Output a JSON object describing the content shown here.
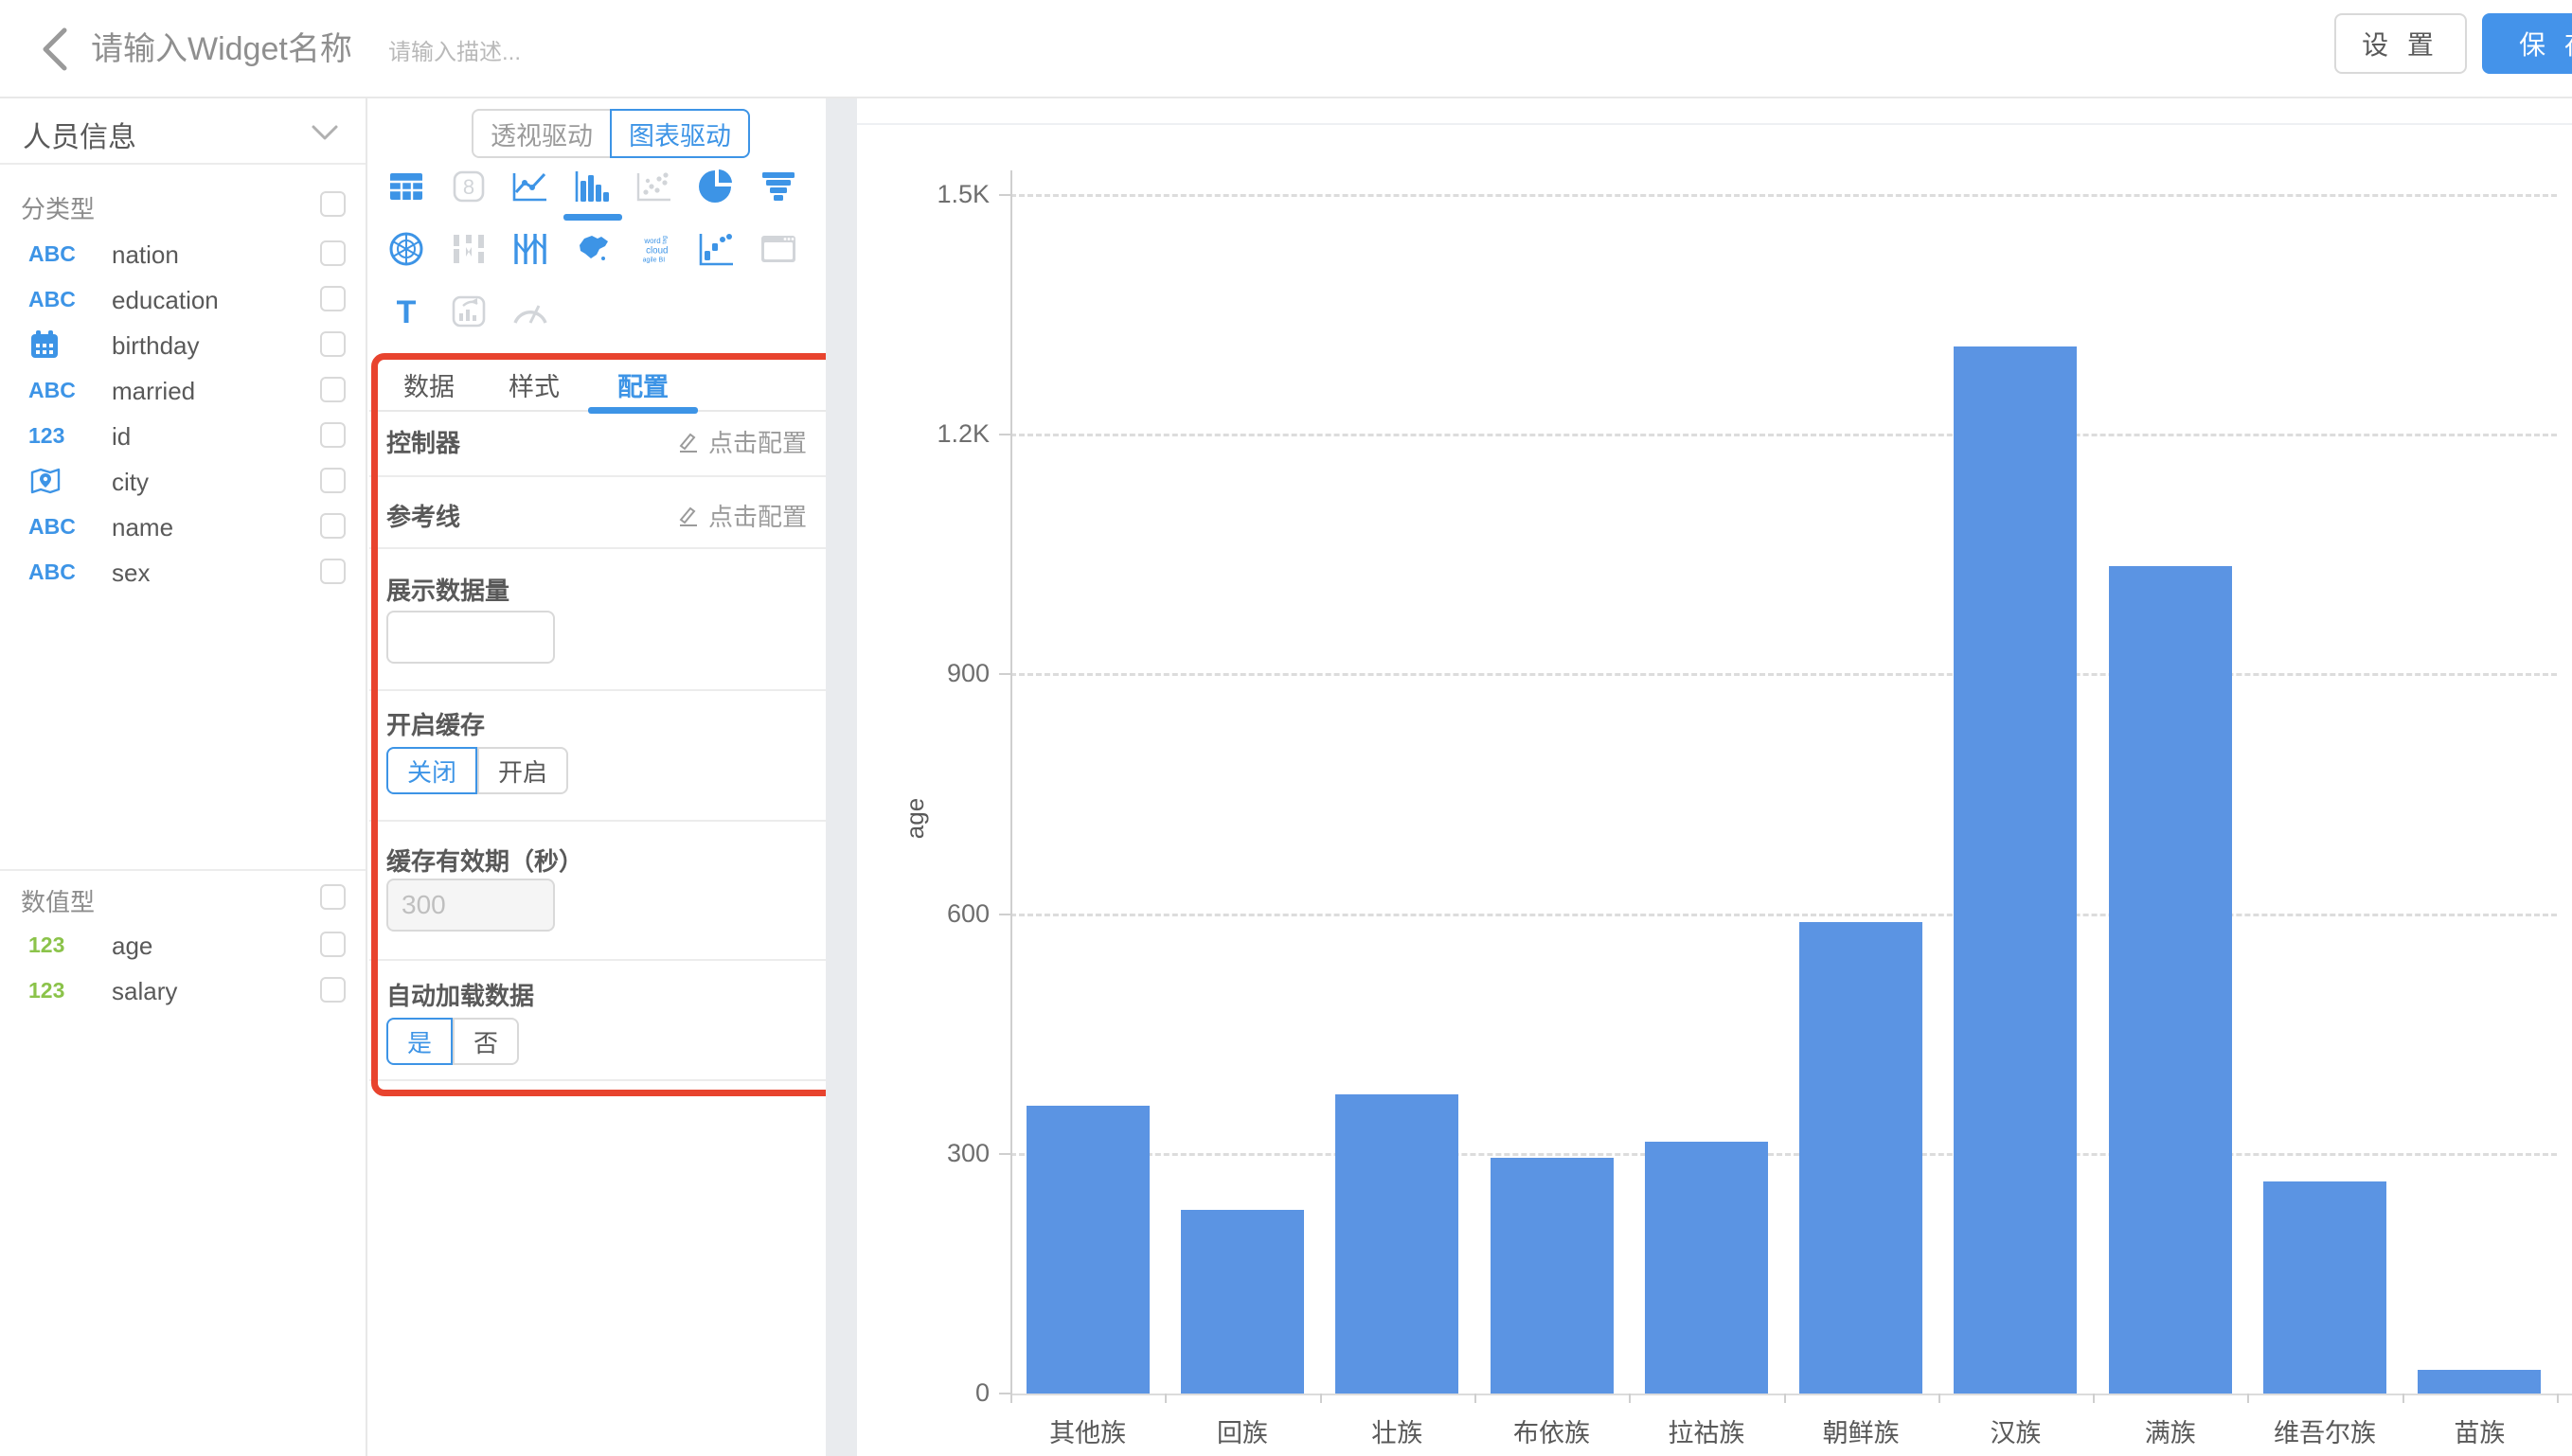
{
  "header": {
    "title_placeholder": "请输入Widget名称",
    "desc_placeholder": "请输入描述...",
    "settings_label": "设 置",
    "save_label": "保 存"
  },
  "colors": {
    "accent": "#3d94e6",
    "disabled_icon": "#d2d5d9",
    "green": "#8bc34a",
    "bar": "#5b94e3",
    "annotation": "#e8432e"
  },
  "sidebar": {
    "dataset_name": "人员信息",
    "groups": [
      {
        "label": "分类型",
        "fields": [
          {
            "icon": "abc",
            "name": "nation"
          },
          {
            "icon": "abc",
            "name": "education"
          },
          {
            "icon": "calendar",
            "name": "birthday"
          },
          {
            "icon": "abc",
            "name": "married"
          },
          {
            "icon": "num-blue",
            "name": "id"
          },
          {
            "icon": "map-pin",
            "name": "city"
          },
          {
            "icon": "abc",
            "name": "name"
          },
          {
            "icon": "abc",
            "name": "sex"
          }
        ]
      },
      {
        "label": "数值型",
        "fields": [
          {
            "icon": "num-green",
            "name": "age"
          },
          {
            "icon": "num-green",
            "name": "salary"
          }
        ]
      }
    ]
  },
  "builder": {
    "mode_tabs": [
      {
        "label": "透视驱动",
        "active": false
      },
      {
        "label": "图表驱动",
        "active": true
      }
    ],
    "chart_types": [
      {
        "icon": "table",
        "enabled": true,
        "selected": false
      },
      {
        "icon": "scorecard",
        "enabled": false,
        "selected": false
      },
      {
        "icon": "line",
        "enabled": true,
        "selected": false
      },
      {
        "icon": "bar",
        "enabled": true,
        "selected": true
      },
      {
        "icon": "scatter",
        "enabled": false,
        "selected": false
      },
      {
        "icon": "pie",
        "enabled": true,
        "selected": false
      },
      {
        "icon": "funnel",
        "enabled": true,
        "selected": false
      },
      {
        "icon": "radar",
        "enabled": true,
        "selected": false
      },
      {
        "icon": "sankey",
        "enabled": false,
        "selected": false
      },
      {
        "icon": "parallel",
        "enabled": true,
        "selected": false
      },
      {
        "icon": "map",
        "enabled": true,
        "selected": false
      },
      {
        "icon": "wordcloud",
        "enabled": true,
        "selected": false
      },
      {
        "icon": "waterfall",
        "enabled": true,
        "selected": false
      },
      {
        "icon": "iframe",
        "enabled": false,
        "selected": false
      },
      {
        "icon": "text",
        "enabled": true,
        "selected": false
      },
      {
        "icon": "richtext",
        "enabled": false,
        "selected": false
      },
      {
        "icon": "gauge",
        "enabled": false,
        "selected": false
      }
    ],
    "tabs": [
      {
        "label": "数据",
        "active": false
      },
      {
        "label": "样式",
        "active": false
      },
      {
        "label": "配置",
        "active": true
      }
    ],
    "config": {
      "controller_label": "控制器",
      "controller_action": "点击配置",
      "refline_label": "参考线",
      "refline_action": "点击配置",
      "limit_label": "展示数据量",
      "limit_value": "",
      "cache_label": "开启缓存",
      "cache_options": [
        "关闭",
        "开启"
      ],
      "cache_selected": 0,
      "cache_expire_label": "缓存有效期（秒）",
      "cache_expire_placeholder": "300",
      "autoload_label": "自动加载数据",
      "autoload_options": [
        "是",
        "否"
      ],
      "autoload_selected": 0
    }
  },
  "chart_data": {
    "type": "bar",
    "title": "",
    "xlabel": "",
    "ylabel": "age",
    "categories": [
      "其他族",
      "回族",
      "壮族",
      "布依族",
      "拉祜族",
      "朝鲜族",
      "汉族",
      "满族",
      "维吾尔族",
      "苗族"
    ],
    "values": [
      360,
      230,
      375,
      295,
      315,
      590,
      1310,
      1035,
      265,
      30
    ],
    "ylim": [
      0,
      1500
    ],
    "ytick_labels": [
      "0",
      "300",
      "600",
      "900",
      "1.2K",
      "1.5K"
    ],
    "ytick_values": [
      0,
      300,
      600,
      900,
      1200,
      1500
    ],
    "grid": "dashed-horizontal",
    "legend": "none",
    "bar_color": "#5b94e3"
  }
}
